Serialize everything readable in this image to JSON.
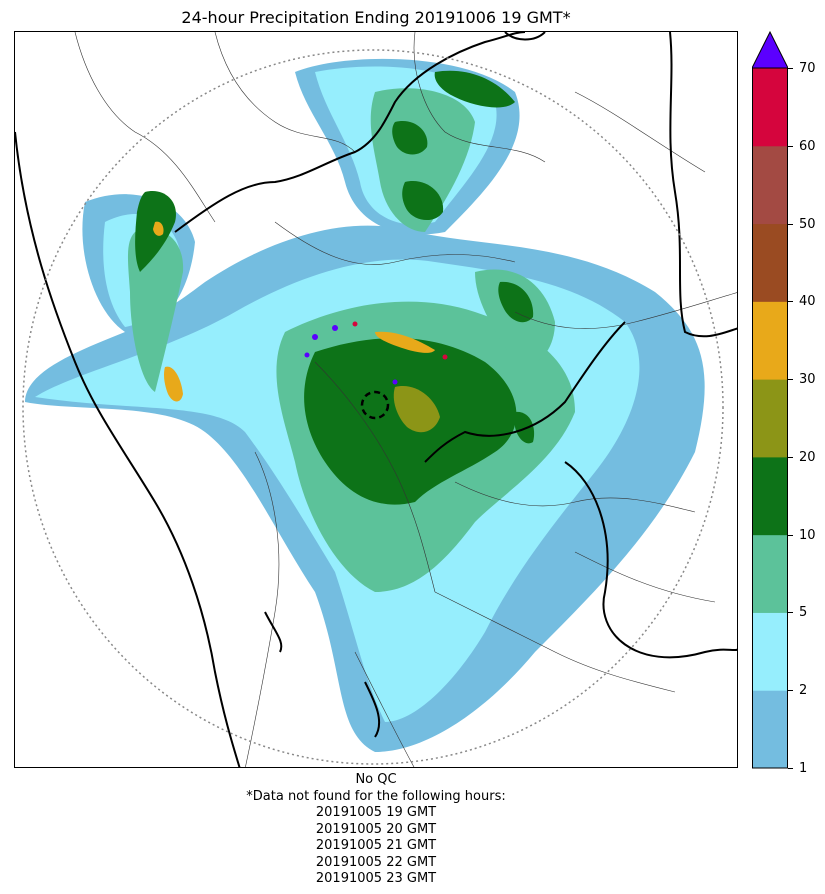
{
  "title": "24-hour Precipitation Ending 20191006 19 GMT*",
  "colorbar": {
    "levels": [
      "1",
      "2",
      "5",
      "10",
      "20",
      "30",
      "40",
      "50",
      "60",
      "70"
    ],
    "colors": [
      "#74bde0",
      "#96eefd",
      "#5cc29a",
      "#0d7318",
      "#8c9517",
      "#e8a91a",
      "#9a4b22",
      "#a34a43",
      "#d5053d"
    ],
    "extend_color": "#5b00ff"
  },
  "footnote": {
    "qc": "No QC",
    "missing_header": "*Data not found for the following hours:",
    "missing_hours": [
      "20191005 19 GMT",
      "20191005 20 GMT",
      "20191005 21 GMT",
      "20191005 22 GMT",
      "20191005 23 GMT"
    ]
  }
}
